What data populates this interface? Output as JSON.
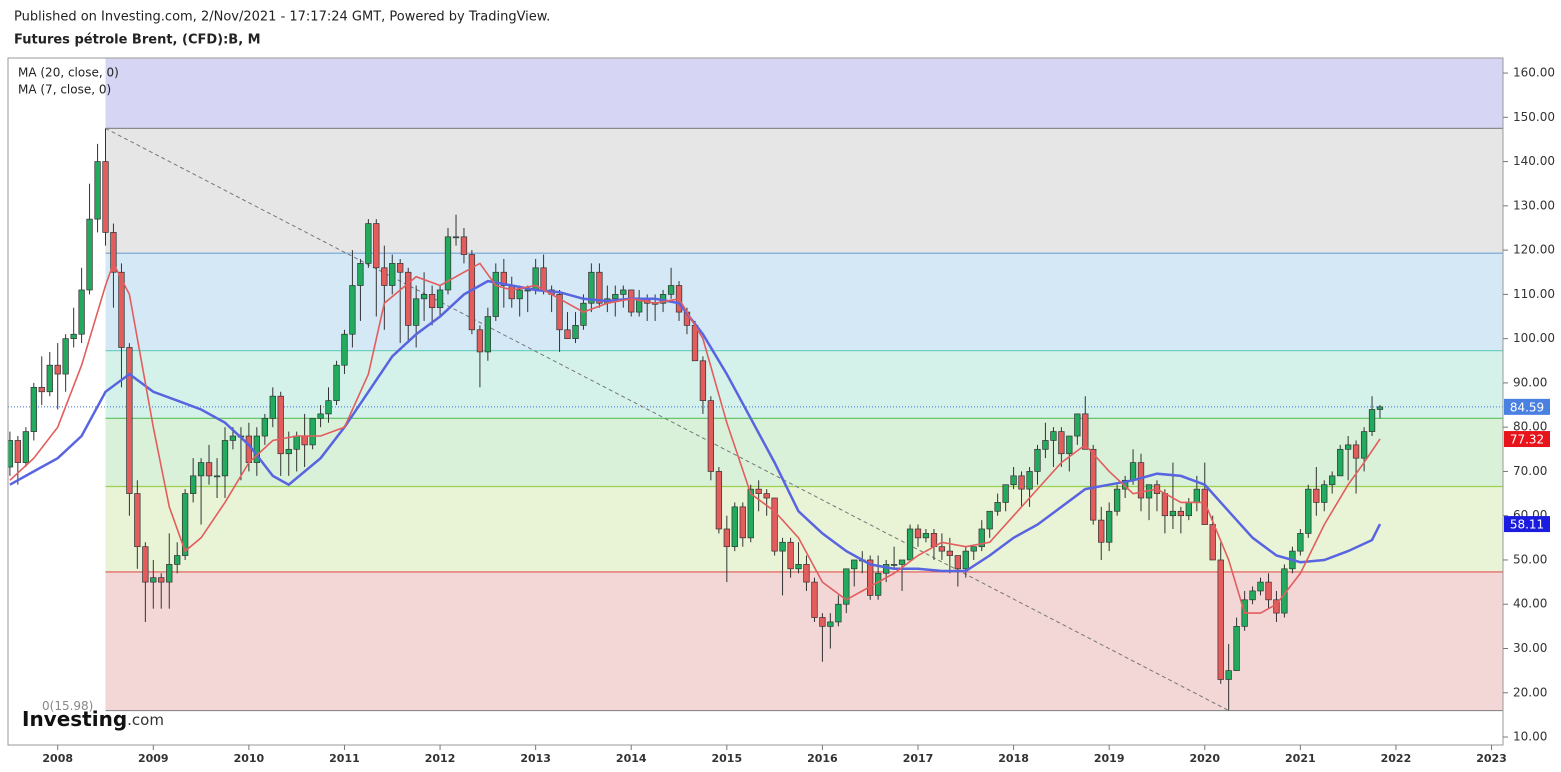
{
  "chart_data": {
    "type": "candlestick",
    "published": "Published on Investing.com, 2/Nov/2021 - 17:17:24 GMT, Powered by TradingView.",
    "title": "Futures pétrole Brent, (CFD):B, M",
    "logo": {
      "brand": "Investing",
      "suffix": ".com"
    },
    "xlim": [
      2007.48,
      2023.12
    ],
    "xticks": [
      2008,
      2009,
      2010,
      2011,
      2012,
      2013,
      2014,
      2015,
      2016,
      2017,
      2018,
      2019,
      2020,
      2021,
      2022,
      2023
    ],
    "ylim": [
      8.2,
      163.4
    ],
    "yticks": [
      {
        "value": 10,
        "label": "10.00"
      },
      {
        "value": 20,
        "label": "20.00"
      },
      {
        "value": 30,
        "label": "30.00"
      },
      {
        "value": 40,
        "label": "40.00"
      },
      {
        "value": 50,
        "label": "50.00"
      },
      {
        "value": 60,
        "label": "60.00"
      },
      {
        "value": 70,
        "label": "70.00"
      },
      {
        "value": 80,
        "label": "80.00"
      },
      {
        "value": 90,
        "label": "90.00"
      },
      {
        "value": 100,
        "label": "100.00"
      },
      {
        "value": 110,
        "label": "110.00"
      },
      {
        "value": 120,
        "label": "120.00"
      },
      {
        "value": 130,
        "label": "130.00"
      },
      {
        "value": 140,
        "label": "140.00"
      },
      {
        "value": 150,
        "label": "150.00"
      },
      {
        "value": 160,
        "label": "160.00"
      }
    ],
    "up_color": "#22ab5e",
    "down_color": "#e35d5d",
    "x": [
      2007.5,
      2007.583,
      2007.667,
      2007.75,
      2007.833,
      2007.917,
      2008,
      2008.083,
      2008.167,
      2008.25,
      2008.333,
      2008.417,
      2008.5,
      2008.583,
      2008.667,
      2008.75,
      2008.833,
      2008.917,
      2009,
      2009.083,
      2009.167,
      2009.25,
      2009.333,
      2009.417,
      2009.5,
      2009.583,
      2009.667,
      2009.75,
      2009.833,
      2009.917,
      2010,
      2010.083,
      2010.167,
      2010.25,
      2010.333,
      2010.417,
      2010.5,
      2010.583,
      2010.667,
      2010.75,
      2010.833,
      2010.917,
      2011,
      2011.083,
      2011.167,
      2011.25,
      2011.333,
      2011.417,
      2011.5,
      2011.583,
      2011.667,
      2011.75,
      2011.833,
      2011.917,
      2012,
      2012.083,
      2012.167,
      2012.25,
      2012.333,
      2012.417,
      2012.5,
      2012.583,
      2012.667,
      2012.75,
      2012.833,
      2012.917,
      2013,
      2013.083,
      2013.167,
      2013.25,
      2013.333,
      2013.417,
      2013.5,
      2013.583,
      2013.667,
      2013.75,
      2013.833,
      2013.917,
      2014,
      2014.083,
      2014.167,
      2014.25,
      2014.333,
      2014.417,
      2014.5,
      2014.583,
      2014.667,
      2014.75,
      2014.833,
      2014.917,
      2015,
      2015.083,
      2015.167,
      2015.25,
      2015.333,
      2015.417,
      2015.5,
      2015.583,
      2015.667,
      2015.75,
      2015.833,
      2015.917,
      2016,
      2016.083,
      2016.167,
      2016.25,
      2016.333,
      2016.417,
      2016.5,
      2016.583,
      2016.667,
      2016.75,
      2016.833,
      2016.917,
      2017,
      2017.083,
      2017.167,
      2017.25,
      2017.333,
      2017.417,
      2017.5,
      2017.583,
      2017.667,
      2017.75,
      2017.833,
      2017.917,
      2018,
      2018.083,
      2018.167,
      2018.25,
      2018.333,
      2018.417,
      2018.5,
      2018.583,
      2018.667,
      2018.75,
      2018.833,
      2018.917,
      2019,
      2019.083,
      2019.167,
      2019.25,
      2019.333,
      2019.417,
      2019.5,
      2019.583,
      2019.667,
      2019.75,
      2019.833,
      2019.917,
      2020,
      2020.083,
      2020.167,
      2020.25,
      2020.333,
      2020.417,
      2020.5,
      2020.583,
      2020.667,
      2020.75,
      2020.833,
      2020.917,
      2021,
      2021.083,
      2021.167,
      2021.25,
      2021.333,
      2021.417,
      2021.5,
      2021.583,
      2021.667,
      2021.75,
      2021.833
    ],
    "open": [
      71,
      77,
      72,
      79,
      89,
      88,
      94,
      92,
      100,
      101,
      111,
      127,
      140,
      124,
      115,
      98,
      65,
      53,
      45,
      46,
      45,
      49,
      51,
      65,
      69,
      72,
      69,
      69,
      77,
      78,
      78,
      72,
      78,
      82,
      87,
      74,
      75,
      78,
      76,
      82,
      83,
      86,
      94,
      101,
      112,
      117,
      126,
      116,
      112,
      117,
      115,
      103,
      109,
      110,
      107,
      111,
      123,
      123,
      119,
      102,
      97,
      105,
      115,
      112,
      109,
      111,
      111,
      116,
      111,
      110,
      102,
      100,
      103,
      108,
      115,
      108,
      109,
      110,
      111,
      106,
      109,
      108,
      108,
      110,
      112,
      106,
      103,
      95,
      86,
      70,
      57,
      53,
      62,
      55,
      66,
      65,
      64,
      52,
      54,
      48,
      49,
      45,
      37,
      35,
      36,
      40,
      48,
      50,
      50,
      42,
      47,
      49,
      49,
      50,
      57,
      55,
      56,
      53,
      52,
      51,
      48,
      52,
      53,
      57,
      61,
      63,
      67,
      69,
      66,
      70,
      75,
      77,
      79,
      74,
      78,
      83,
      75,
      59,
      54,
      61,
      66,
      68,
      72,
      64,
      67,
      65,
      60,
      61,
      60,
      63,
      66,
      58,
      50,
      23,
      25,
      35,
      41,
      43,
      45,
      41,
      38,
      48,
      52,
      56,
      66,
      63,
      67,
      69,
      75,
      76,
      73,
      79,
      84
    ],
    "high": [
      79,
      78,
      80,
      90,
      96,
      97,
      99,
      101,
      107,
      116,
      135,
      144,
      147.5,
      126,
      117,
      99,
      68,
      54,
      50,
      47,
      56,
      54,
      66,
      73,
      73,
      76,
      73,
      80,
      80,
      80,
      81,
      80,
      83,
      89,
      88,
      79,
      79,
      83,
      82,
      85,
      89,
      95,
      102,
      120,
      118,
      127,
      127,
      121,
      119,
      118,
      116,
      112,
      115,
      112,
      112,
      125,
      128,
      125,
      120,
      103,
      107,
      117,
      118,
      114,
      112,
      112,
      118,
      119,
      112,
      111,
      106,
      106,
      110,
      117,
      117,
      112,
      112,
      112,
      111,
      111,
      110,
      110,
      111,
      116,
      113,
      107,
      104,
      96,
      87,
      71,
      60,
      63,
      63,
      67,
      68,
      66,
      64,
      55,
      55,
      54,
      51,
      46,
      38,
      38,
      42,
      48,
      50,
      52,
      51,
      51,
      50,
      53,
      50,
      58,
      58,
      57,
      57,
      56,
      55,
      51,
      53,
      53,
      59,
      61,
      65,
      67,
      71,
      70,
      71,
      76,
      81,
      80,
      80,
      78,
      83,
      87,
      76,
      62,
      63,
      67,
      69,
      75,
      74,
      67,
      68,
      66,
      72,
      62,
      64,
      69,
      72,
      60,
      54,
      31,
      37,
      43,
      44,
      46,
      47,
      43,
      49,
      53,
      57,
      67,
      71,
      68,
      70,
      76,
      78,
      77,
      80,
      87,
      85
    ],
    "low": [
      69,
      67,
      71,
      77,
      85,
      87,
      84,
      88,
      98,
      99,
      110,
      124,
      121,
      107,
      89,
      60,
      48,
      36,
      39,
      39,
      39,
      47,
      50,
      63,
      58,
      67,
      64,
      64,
      75,
      68,
      70,
      69,
      76,
      80,
      69,
      69,
      70,
      71,
      75,
      80,
      81,
      85,
      92,
      98,
      104,
      116,
      105,
      102,
      110,
      99,
      99,
      98,
      104,
      103,
      105,
      110,
      121,
      117,
      101,
      89,
      95,
      104,
      107,
      107,
      105,
      106,
      110,
      110,
      106,
      97,
      100,
      99,
      102,
      106,
      107,
      106,
      105,
      107,
      105,
      105,
      104,
      104,
      106,
      109,
      104,
      101,
      95,
      83,
      68,
      56,
      45,
      52,
      53,
      54,
      61,
      60,
      51,
      42,
      46,
      47,
      43,
      36,
      27,
      30,
      35,
      38,
      44,
      47,
      41,
      41,
      45,
      48,
      43,
      50,
      53,
      54,
      50,
      50,
      47,
      44,
      46,
      50,
      52,
      55,
      60,
      61,
      66,
      62,
      62,
      67,
      73,
      71,
      71,
      70,
      76,
      75,
      58,
      50,
      52,
      60,
      64,
      67,
      61,
      59,
      61,
      56,
      57,
      56,
      59,
      61,
      58,
      50,
      22,
      16,
      25,
      34,
      40,
      42,
      39,
      36,
      37,
      47,
      51,
      55,
      60,
      61,
      65,
      69,
      68,
      65,
      70,
      78,
      82
    ],
    "close": [
      77,
      72,
      79,
      89,
      88,
      94,
      92,
      100,
      101,
      111,
      127,
      140,
      124,
      115,
      98,
      65,
      53,
      45,
      46,
      45,
      49,
      51,
      65,
      69,
      72,
      69,
      69,
      77,
      78,
      78,
      72,
      78,
      82,
      87,
      74,
      75,
      78,
      76,
      82,
      83,
      86,
      94,
      101,
      112,
      117,
      126,
      116,
      112,
      117,
      115,
      103,
      109,
      110,
      107,
      111,
      123,
      123,
      119,
      102,
      97,
      105,
      115,
      112,
      109,
      111,
      111,
      116,
      111,
      110,
      102,
      100,
      103,
      108,
      115,
      108,
      109,
      110,
      111,
      106,
      109,
      108,
      108,
      110,
      112,
      106,
      103,
      95,
      86,
      70,
      57,
      53,
      62,
      55,
      66,
      65,
      64,
      52,
      54,
      48,
      49,
      45,
      37,
      35,
      36,
      40,
      48,
      50,
      50,
      42,
      47,
      49,
      49,
      50,
      57,
      55,
      56,
      53,
      52,
      51,
      48,
      52,
      53,
      57,
      61,
      63,
      67,
      69,
      66,
      70,
      75,
      77,
      79,
      74,
      78,
      83,
      75,
      59,
      54,
      61,
      66,
      68,
      72,
      64,
      67,
      65,
      60,
      61,
      60,
      63,
      66,
      58,
      50,
      23,
      25,
      35,
      41,
      43,
      45,
      41,
      38,
      48,
      52,
      56,
      66,
      63,
      67,
      69,
      75,
      76,
      73,
      79,
      84,
      84.59
    ],
    "series": [
      {
        "name": "MA (20, close, 0)",
        "color": "#5864e0",
        "x": [
          2007.5,
          2007.75,
          2008,
          2008.25,
          2008.5,
          2008.75,
          2009,
          2009.25,
          2009.5,
          2009.75,
          2010,
          2010.25,
          2010.417,
          2010.75,
          2011,
          2011.25,
          2011.5,
          2011.75,
          2012,
          2012.25,
          2012.5,
          2012.75,
          2013,
          2013.25,
          2013.5,
          2013.75,
          2014,
          2014.25,
          2014.5,
          2014.75,
          2015,
          2015.25,
          2015.5,
          2015.75,
          2016,
          2016.25,
          2016.5,
          2016.75,
          2017,
          2017.25,
          2017.5,
          2017.75,
          2018,
          2018.25,
          2018.5,
          2018.75,
          2019,
          2019.25,
          2019.5,
          2019.75,
          2020,
          2020.25,
          2020.5,
          2020.75,
          2021,
          2021.25,
          2021.5,
          2021.75,
          2021.833
        ],
        "values": [
          67,
          70,
          73,
          78,
          88,
          92,
          88,
          86,
          84,
          81,
          76,
          69,
          67,
          73,
          80,
          88,
          96,
          101,
          105,
          110,
          113,
          112,
          111,
          110.5,
          109,
          108.5,
          109,
          109,
          108,
          101,
          92,
          82,
          72,
          61,
          56,
          52,
          49,
          48,
          48,
          47.5,
          47.5,
          51,
          55,
          58,
          62,
          66,
          67,
          68,
          69.5,
          69,
          67,
          61,
          55,
          51,
          49.5,
          50,
          52,
          54.5,
          58.11
        ]
      },
      {
        "name": "MA (7, close, 0)",
        "color": "#e35d5d",
        "x": [
          2007.5,
          2007.75,
          2008,
          2008.25,
          2008.5,
          2008.583,
          2008.75,
          2009,
          2009.167,
          2009.333,
          2009.5,
          2009.75,
          2010,
          2010.25,
          2010.5,
          2010.75,
          2011,
          2011.25,
          2011.417,
          2011.75,
          2012,
          2012.25,
          2012.417,
          2012.583,
          2012.75,
          2013,
          2013.25,
          2013.5,
          2013.75,
          2014,
          2014.25,
          2014.5,
          2014.75,
          2015,
          2015.25,
          2015.5,
          2015.75,
          2016,
          2016.25,
          2016.5,
          2016.75,
          2017,
          2017.25,
          2017.5,
          2017.75,
          2018,
          2018.25,
          2018.5,
          2018.75,
          2019,
          2019.25,
          2019.5,
          2019.75,
          2020,
          2020.25,
          2020.417,
          2020.583,
          2020.75,
          2021,
          2021.25,
          2021.5,
          2021.667,
          2021.833
        ],
        "values": [
          68,
          73,
          80,
          94,
          112,
          117,
          110,
          80,
          62,
          52,
          55,
          63,
          72,
          77,
          78,
          78,
          80,
          92,
          108,
          114,
          112,
          115,
          117,
          112,
          111,
          112,
          109,
          106,
          108,
          109,
          108,
          109,
          100,
          81,
          65,
          61,
          55,
          45,
          41,
          44,
          47,
          51,
          54,
          53,
          54,
          60,
          66,
          72,
          76,
          70,
          65,
          66,
          63,
          63,
          50,
          38,
          38,
          40,
          47,
          58,
          67,
          72,
          77.32
        ]
      }
    ],
    "fib": {
      "start": 2008.5,
      "label": "0(15.98)",
      "top_fill": "#d6d6f4",
      "levels": [
        147.5,
        119.3,
        97.3,
        82,
        66.6,
        47.3,
        15.98
      ],
      "line_colors": [
        "#8a8a8a",
        "#6fa3d6",
        "#6fcfc0",
        "#5cbf5c",
        "#98d24f",
        "#e05555",
        "#8a8a8a"
      ],
      "fills": [
        "#e6e6e6",
        "#d5e8f5",
        "#d5f2ea",
        "#d9f0d9",
        "#e9f3d6",
        "#f3d6d6"
      ]
    },
    "trendline": {
      "x": [
        2008.5,
        2020.25
      ],
      "y": [
        147.5,
        15.98
      ]
    },
    "last_price": 84.59,
    "badges": [
      {
        "value": 84.59,
        "color": "#4a80e2"
      },
      {
        "value": 77.32,
        "color": "#e8141c"
      },
      {
        "value": 58.11,
        "color": "#1c1ce0"
      }
    ]
  }
}
